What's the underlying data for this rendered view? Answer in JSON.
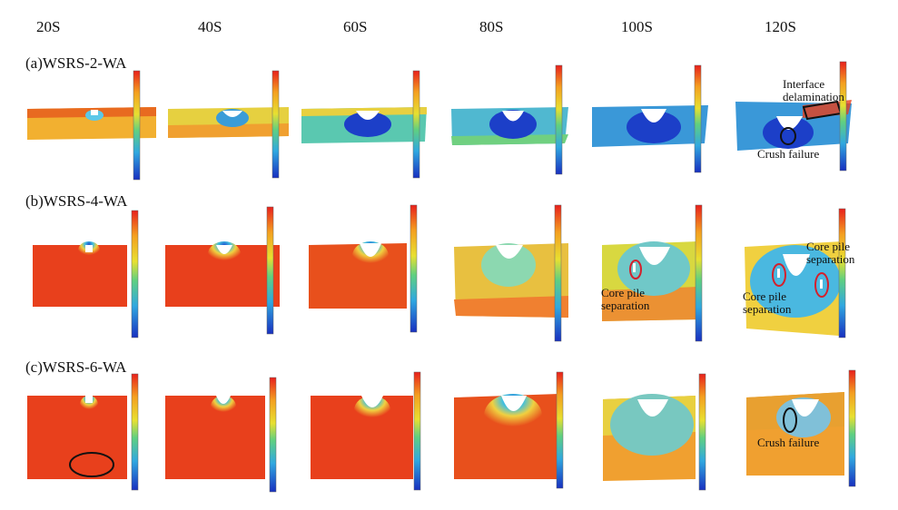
{
  "time_labels": [
    "20S",
    "40S",
    "60S",
    "80S",
    "100S",
    "120S"
  ],
  "rows": [
    {
      "label": "(a)WSRS-2-WA"
    },
    {
      "label": "(b)WSRS-4-WA"
    },
    {
      "label": "(c)WSRS-6-WA"
    }
  ],
  "annotations": {
    "a_interface": "Interface delamination",
    "a_crush": "Crush failure",
    "b_core_100": "Core pile separation",
    "b_core_120_left": "Core pile separation",
    "b_core_120_right": "Core pile separation",
    "c_crush": "Crush failure"
  },
  "colors": {
    "red": "#e8401c",
    "orange": "#f47a20",
    "yellow": "#f2d23a",
    "green": "#7ed06a",
    "cyan": "#4ec8e0",
    "blue": "#1c3fc8",
    "highlight_red": "#d4202c",
    "marker_black": "#111111"
  },
  "icons": [
    "colorbar-legend",
    "red-ellipse-marker",
    "black-ellipse-marker"
  ]
}
